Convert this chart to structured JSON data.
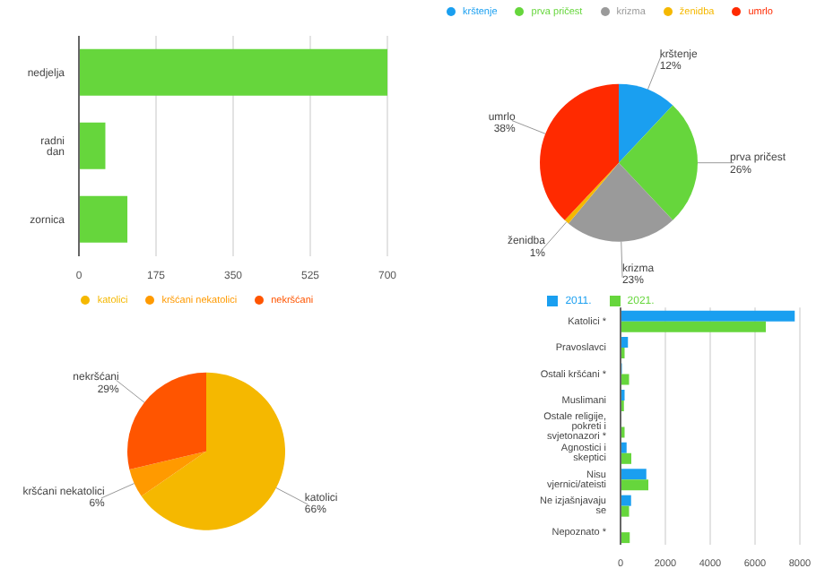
{
  "chart_data": [
    {
      "type": "bar",
      "orientation": "horizontal",
      "categories": [
        "nedjelja",
        "radni dan",
        "zornica"
      ],
      "values": [
        700,
        60,
        110
      ],
      "color": "#66d63c",
      "xlim": [
        0,
        700
      ],
      "xticks": [
        0,
        175,
        350,
        525,
        700
      ],
      "grid": "x"
    },
    {
      "type": "pie",
      "categories": [
        "krštenje",
        "prva pričest",
        "krizma",
        "ženidba",
        "umrlo"
      ],
      "values": [
        12,
        26,
        23,
        1,
        38
      ],
      "value_labels": [
        "12%",
        "26%",
        "23%",
        "1%",
        "38%"
      ],
      "colors": [
        "#1a9ff0",
        "#66d63c",
        "#9a9a9a",
        "#f5b800",
        "#ff2a00"
      ],
      "legend": "top"
    },
    {
      "type": "pie",
      "categories": [
        "katolici",
        "kršćani nekatolici",
        "nekršćani"
      ],
      "values": [
        66,
        6,
        29
      ],
      "value_labels": [
        "66%",
        "6%",
        "29%"
      ],
      "colors": [
        "#f5b800",
        "#ff9a00",
        "#ff5500"
      ],
      "legend": "top"
    },
    {
      "type": "bar",
      "orientation": "horizontal",
      "categories": [
        "Katolici *",
        "Pravoslavci",
        "Ostali kršćani *",
        "Muslimani",
        "Ostale religije, pokreti i svjetonazori *",
        "Agnostici i skeptici",
        "Nisu vjernici/ateisti",
        "Ne izjašnjavaju se",
        "Nepoznato *"
      ],
      "series": [
        {
          "name": "2011.",
          "color": "#1a9ff0",
          "values": [
            7770,
            330,
            60,
            180,
            null,
            270,
            1150,
            470,
            null
          ]
        },
        {
          "name": "2021.",
          "color": "#66d63c",
          "values": [
            6480,
            180,
            380,
            150,
            180,
            480,
            1240,
            380,
            410
          ]
        }
      ],
      "xlim": [
        0,
        8000
      ],
      "xticks": [
        0,
        2000,
        4000,
        6000,
        8000
      ],
      "grid": "x",
      "legend": "top"
    }
  ]
}
